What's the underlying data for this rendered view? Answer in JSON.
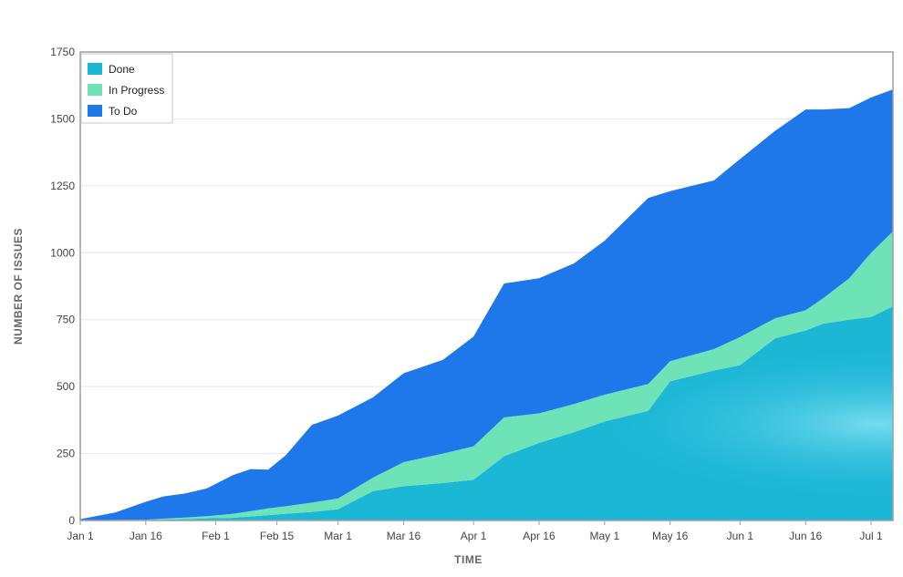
{
  "chart_data": {
    "type": "area",
    "stacked": true,
    "xlabel": "TIME",
    "ylabel": "NUMBER OF ISSUES",
    "ylim": [
      0,
      1750
    ],
    "yticks": [
      0,
      250,
      500,
      750,
      1000,
      1250,
      1500,
      1750
    ],
    "grid": true,
    "legend_position": "top-left",
    "x_tick_labels": [
      {
        "day": 0,
        "label": "Jan 1"
      },
      {
        "day": 15,
        "label": "Jan 16"
      },
      {
        "day": 31,
        "label": "Feb 1"
      },
      {
        "day": 45,
        "label": "Feb 15"
      },
      {
        "day": 59,
        "label": "Mar 1"
      },
      {
        "day": 74,
        "label": "Mar 16"
      },
      {
        "day": 90,
        "label": "Apr 1"
      },
      {
        "day": 105,
        "label": "Apr 16"
      },
      {
        "day": 120,
        "label": "May 1"
      },
      {
        "day": 135,
        "label": "May 16"
      },
      {
        "day": 151,
        "label": "Jun 1"
      },
      {
        "day": 166,
        "label": "Jun 16"
      },
      {
        "day": 181,
        "label": "Jul 1"
      }
    ],
    "x_day_range": [
      0,
      186
    ],
    "x": [
      0,
      8,
      15,
      19,
      24,
      29,
      35,
      39,
      43,
      47,
      53,
      59,
      67,
      74,
      83,
      90,
      97,
      105,
      113,
      120,
      130,
      135,
      145,
      151,
      159,
      166,
      170,
      176,
      181,
      186
    ],
    "series": [
      {
        "name": "Done",
        "color": "#1db7d6",
        "values": [
          0,
          0,
          0,
          3,
          5,
          8,
          10,
          15,
          20,
          25,
          32,
          42,
          110,
          128,
          140,
          152,
          240,
          290,
          330,
          370,
          410,
          520,
          560,
          580,
          680,
          710,
          735,
          750,
          760,
          800
        ]
      },
      {
        "name": "In Progress",
        "color": "#6ee3b7",
        "values": [
          0,
          2,
          3,
          4,
          6,
          8,
          15,
          20,
          25,
          28,
          35,
          40,
          50,
          90,
          110,
          125,
          145,
          110,
          105,
          100,
          100,
          75,
          80,
          105,
          75,
          75,
          95,
          155,
          240,
          280
        ]
      },
      {
        "name": "To Do",
        "color": "#1e78ea",
        "values": [
          5,
          28,
          67,
          83,
          90,
          104,
          145,
          157,
          145,
          190,
          290,
          310,
          300,
          332,
          350,
          410,
          500,
          505,
          525,
          575,
          695,
          635,
          630,
          665,
          700,
          750,
          705,
          635,
          580,
          530
        ]
      }
    ]
  }
}
